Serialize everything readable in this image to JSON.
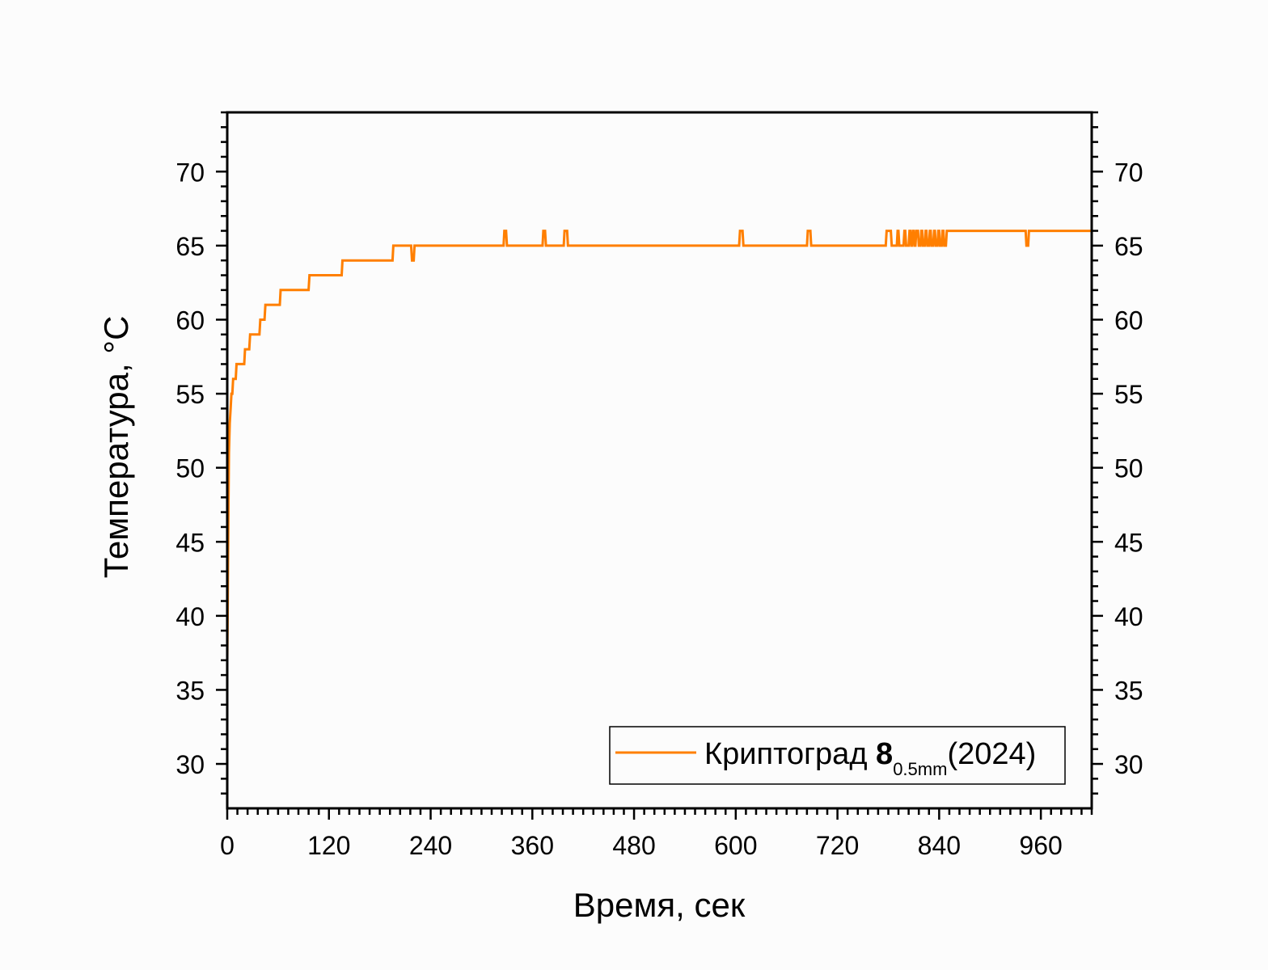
{
  "chart_data": {
    "type": "line",
    "xlabel": "Время, сек",
    "ylabel": "Температура, °C",
    "xlim": [
      0,
      1020
    ],
    "ylim": [
      27,
      74
    ],
    "x_ticks": [
      "0",
      "120",
      "240",
      "360",
      "480",
      "600",
      "720",
      "840",
      "960"
    ],
    "y_ticks": [
      "30",
      "35",
      "40",
      "45",
      "50",
      "55",
      "60",
      "65",
      "70"
    ],
    "legend": {
      "position": "bottom-right",
      "label_main": "Криптоград ",
      "label_bold": "8",
      "label_sub": "0.5mm",
      "label_tail": "(2024)"
    },
    "line_color": "#ff7f00",
    "series": [
      {
        "name": "Криптоград 8 0.5mm (2024)",
        "x": [
          0,
          0.5,
          1,
          1.5,
          2,
          3,
          4,
          5,
          6,
          7,
          10,
          11,
          14,
          15,
          20,
          21,
          26,
          27,
          32,
          33,
          38,
          39,
          44,
          45,
          53,
          54,
          62,
          63,
          72,
          73,
          96,
          97,
          135,
          136,
          195,
          196,
          217,
          218,
          220,
          221,
          326,
          327,
          329,
          330,
          372,
          373,
          375,
          376,
          397,
          398,
          401,
          402,
          604,
          605,
          608,
          609,
          684,
          685,
          688,
          689,
          777,
          778,
          783,
          784,
          790,
          791,
          792,
          793,
          798,
          799,
          800,
          801,
          804,
          805,
          806,
          807,
          808,
          809,
          810,
          811,
          812,
          813,
          815,
          816,
          818,
          819,
          820,
          821,
          823,
          824,
          825,
          826,
          828,
          829,
          830,
          831,
          833,
          834,
          835,
          836,
          838,
          839,
          840,
          841,
          843,
          844,
          845,
          846,
          848,
          849,
          850,
          851,
          942,
          943,
          945,
          946,
          1020
        ],
        "y": [
          37,
          40,
          44,
          48,
          51,
          53,
          54,
          55,
          55,
          56,
          56,
          57,
          57,
          57,
          57,
          58,
          58,
          59,
          59,
          59,
          59,
          60,
          60,
          61,
          61,
          61,
          61,
          62,
          62,
          62,
          62,
          63,
          63,
          64,
          64,
          65,
          65,
          64,
          64,
          65,
          65,
          66,
          66,
          65,
          65,
          66,
          66,
          65,
          65,
          66,
          66,
          65,
          65,
          66,
          66,
          65,
          65,
          66,
          66,
          65,
          65,
          66,
          66,
          65,
          65,
          66,
          66,
          65,
          65,
          66,
          66,
          65,
          65,
          66,
          66,
          65,
          65,
          66,
          66,
          65,
          65,
          66,
          66,
          65,
          65,
          66,
          66,
          65,
          65,
          66,
          66,
          65,
          65,
          66,
          66,
          65,
          65,
          66,
          66,
          65,
          65,
          66,
          66,
          65,
          65,
          66,
          66,
          65,
          65,
          66,
          66,
          66,
          66,
          65,
          65,
          66,
          66
        ]
      }
    ]
  }
}
